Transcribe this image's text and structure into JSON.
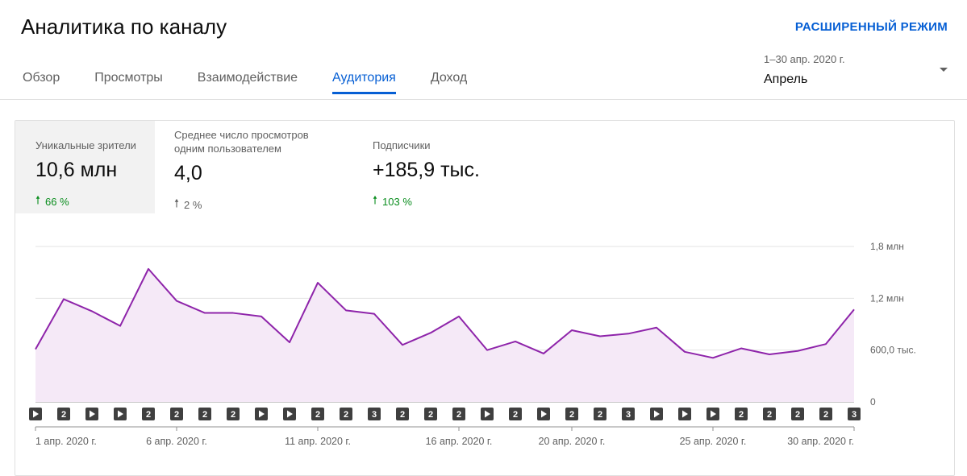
{
  "header": {
    "title": "Аналитика по каналу",
    "advanced_mode": "РАСШИРЕННЫЙ РЕЖИМ"
  },
  "tabs": [
    {
      "label": "Обзор",
      "active": false
    },
    {
      "label": "Просмотры",
      "active": false
    },
    {
      "label": "Взаимодействие",
      "active": false
    },
    {
      "label": "Аудитория",
      "active": true
    },
    {
      "label": "Доход",
      "active": false
    }
  ],
  "date_picker": {
    "range": "1–30 апр. 2020 г.",
    "value": "Апрель"
  },
  "metrics": [
    {
      "label": "Уникальные зрители",
      "value": "10,6 млн",
      "change": "66 %",
      "direction": "up",
      "color": "#0a8d1e",
      "selected": true
    },
    {
      "label": "Среднее число просмотров одним пользователем",
      "value": "4,0",
      "change": "2 %",
      "direction": "up",
      "color": "#606060",
      "selected": false
    },
    {
      "label": "Подписчики",
      "value": "+185,9 тыс.",
      "change": "103 %",
      "direction": "up",
      "color": "#0a8d1e",
      "selected": false
    }
  ],
  "chart_data": {
    "type": "area",
    "x": [
      "1 апр. 2020 г.",
      "2 апр.",
      "3 апр.",
      "4 апр.",
      "5 апр.",
      "6 апр. 2020 г.",
      "7 апр.",
      "8 апр.",
      "9 апр.",
      "10 апр.",
      "11 апр. 2020 г.",
      "12 апр.",
      "13 апр.",
      "14 апр.",
      "15 апр.",
      "16 апр. 2020 г.",
      "17 апр.",
      "18 апр.",
      "19 апр.",
      "20 апр. 2020 г.",
      "21 апр.",
      "22 апр.",
      "23 апр.",
      "24 апр.",
      "25 апр. 2020 г.",
      "26 апр.",
      "27 апр.",
      "28 апр.",
      "29 апр.",
      "30 апр. 2020 г."
    ],
    "values": [
      610000,
      1190000,
      1050000,
      880000,
      1540000,
      1170000,
      1030000,
      1030000,
      990000,
      690000,
      1380000,
      1060000,
      1020000,
      660000,
      800000,
      990000,
      600000,
      700000,
      560000,
      830000,
      760000,
      790000,
      860000,
      580000,
      510000,
      620000,
      550000,
      590000,
      670000,
      1070000
    ],
    "ylim": [
      0,
      1800000
    ],
    "y_ticks": [
      {
        "value": 0,
        "label": "0"
      },
      {
        "value": 600000,
        "label": "600,0 тыс."
      },
      {
        "value": 1200000,
        "label": "1,2 млн"
      },
      {
        "value": 1800000,
        "label": "1,8 млн"
      }
    ],
    "x_tick_labels": [
      "1 апр. 2020 г.",
      "6 апр. 2020 г.",
      "11 апр. 2020 г.",
      "16 апр. 2020 г.",
      "20 апр. 2020 г.",
      "25 апр. 2020 г.",
      "30 апр. 2020 г."
    ],
    "x_tick_indices": [
      0,
      5,
      10,
      15,
      19,
      24,
      29
    ],
    "upload_markers": [
      "play",
      "2",
      "play",
      "play",
      "2",
      "2",
      "2",
      "2",
      "play",
      "play",
      "2",
      "2",
      "3",
      "2",
      "2",
      "2",
      "play",
      "2",
      "play",
      "2",
      "2",
      "3",
      "play",
      "play",
      "play",
      "2",
      "2",
      "2",
      "2",
      "3"
    ],
    "line_color": "#8e24aa",
    "fill_color": "#f5e9f7",
    "grid": true
  }
}
